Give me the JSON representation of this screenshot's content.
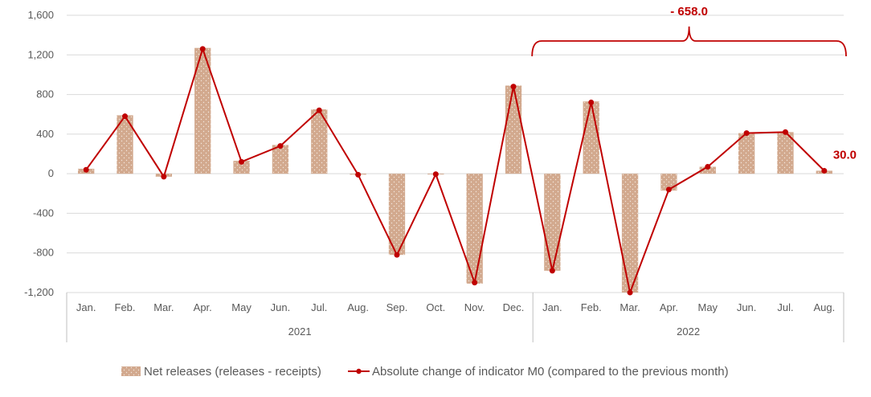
{
  "chart_data": {
    "type": "bar",
    "title": "",
    "xlabel": "",
    "ylabel": "",
    "ylim": [
      -1200,
      1600
    ],
    "yticks": [
      1600,
      1200,
      800,
      400,
      0,
      -400,
      -800,
      -1200
    ],
    "ytick_labels": [
      "1,600",
      "1,200",
      "800",
      "400",
      "0",
      "-400",
      "-800",
      "-1,200"
    ],
    "grid": true,
    "legend_position": "bottom",
    "categories": [
      "Jan.",
      "Feb.",
      "Mar.",
      "Apr.",
      "May",
      "Jun.",
      "Jul.",
      "Aug.",
      "Sep.",
      "Oct.",
      "Nov.",
      "Dec.",
      "Jan.",
      "Feb.",
      "Mar.",
      "Apr.",
      "May",
      "Jun.",
      "Jul.",
      "Aug."
    ],
    "year_groups": [
      {
        "label": "2021",
        "count": 12
      },
      {
        "label": "2022",
        "count": 8
      }
    ],
    "series": [
      {
        "name": "Net releases (releases - receipts)",
        "type": "bar",
        "color": "#d2a98e",
        "values": [
          50,
          590,
          -30,
          1270,
          130,
          290,
          650,
          -10,
          -820,
          -5,
          -1110,
          890,
          -980,
          730,
          -1200,
          -170,
          70,
          410,
          420,
          30
        ]
      },
      {
        "name": "Absolute change of indicator M0 (compared to the previous month)",
        "type": "line",
        "color": "#c00000",
        "values": [
          40,
          580,
          -30,
          1260,
          120,
          280,
          640,
          -10,
          -820,
          -5,
          -1100,
          880,
          -980,
          720,
          -1200,
          -160,
          70,
          410,
          420,
          30
        ]
      }
    ],
    "annotations": [
      {
        "text": "- 658.0",
        "type": "brace",
        "from_index": 12,
        "to_index": 19
      },
      {
        "text": "30.0",
        "type": "label",
        "index": 19
      }
    ],
    "annotation_color": "#c00000"
  }
}
